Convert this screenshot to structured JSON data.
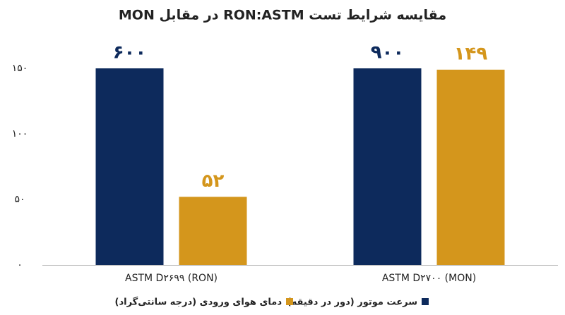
{
  "chart_data": {
    "type": "bar",
    "title": "مقایسه شرایط تست RON:ASTM در مقابل MON",
    "categories": [
      "ASTM D۲۶۹۹ (RON)",
      "ASTM D۲۷۰۰ (MON)"
    ],
    "series": [
      {
        "name": "سرعت موتور (دور در دقیقه)",
        "color": "#0d2a5c",
        "values": [
          600,
          900
        ],
        "value_labels": [
          "۶۰۰",
          "۹۰۰"
        ]
      },
      {
        "name": "دمای هوای ورودی (درجه سانتی‌گراد)",
        "color": "#d4961c",
        "values": [
          52,
          149
        ],
        "value_labels": [
          "۵۲",
          "۱۴۹"
        ]
      }
    ],
    "ylim": [
      0,
      150
    ],
    "yticks": [
      {
        "value": 0,
        "label": "۰"
      },
      {
        "value": 50,
        "label": "۵۰"
      },
      {
        "value": 100,
        "label": "۱۰۰"
      },
      {
        "value": 150,
        "label": "۱۵۰"
      }
    ],
    "grid": false
  }
}
